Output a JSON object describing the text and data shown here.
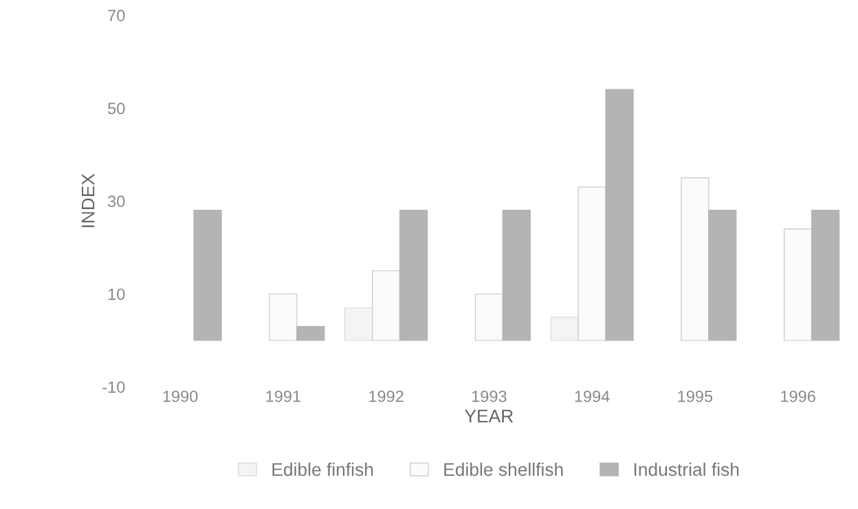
{
  "chart_data": {
    "type": "bar",
    "xlabel": "YEAR",
    "ylabel": "INDEX",
    "categories": [
      "1990",
      "1991",
      "1992",
      "1993",
      "1994",
      "1995",
      "1996"
    ],
    "series": [
      {
        "name": "Edible finfish",
        "color": "#f4f4f4",
        "values": [
          null,
          null,
          7,
          null,
          5,
          null,
          null
        ]
      },
      {
        "name": "Edible shellfish",
        "color": "#fbfbfb",
        "values": [
          null,
          10,
          15,
          10,
          33,
          35,
          24
        ]
      },
      {
        "name": "Industrial fish",
        "color": "#b4b4b4",
        "values": [
          28,
          3,
          28,
          28,
          54,
          28,
          28
        ]
      }
    ],
    "ylim": [
      -10,
      70
    ],
    "yticks": [
      -10,
      10,
      30,
      50,
      70
    ],
    "grid": false,
    "legend": "bottom"
  }
}
